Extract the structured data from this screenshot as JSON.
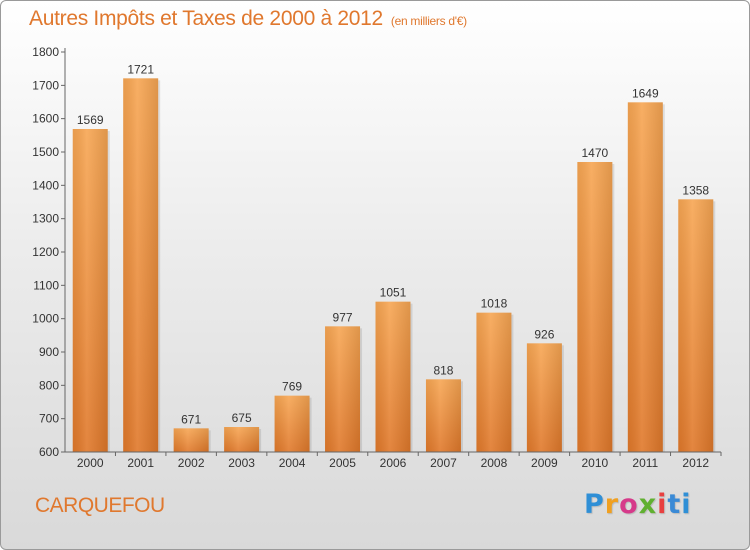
{
  "title": "Autres Impôts et Taxes de 2000 à 2012",
  "subtitle": "(en milliers d'€)",
  "city": "CARQUEFOU",
  "logo_text": "Proxiti",
  "colors": {
    "bar_light": "#f7a653",
    "bar_dark": "#e0782a",
    "title": "#e0782e"
  },
  "chart_data": {
    "type": "bar",
    "title": "Autres Impôts et Taxes de 2000 à 2012",
    "subtitle": "(en milliers d'€)",
    "xlabel": "",
    "ylabel": "",
    "categories": [
      "2000",
      "2001",
      "2002",
      "2003",
      "2004",
      "2005",
      "2006",
      "2007",
      "2008",
      "2009",
      "2010",
      "2011",
      "2012"
    ],
    "values": [
      1569,
      1721,
      671,
      675,
      769,
      977,
      1051,
      818,
      1018,
      926,
      1470,
      1649,
      1358
    ],
    "ylim": [
      600,
      1800
    ],
    "yticks": [
      600,
      700,
      800,
      900,
      1000,
      1100,
      1200,
      1300,
      1400,
      1500,
      1600,
      1700,
      1800
    ],
    "grid": false,
    "data_labels": true
  }
}
